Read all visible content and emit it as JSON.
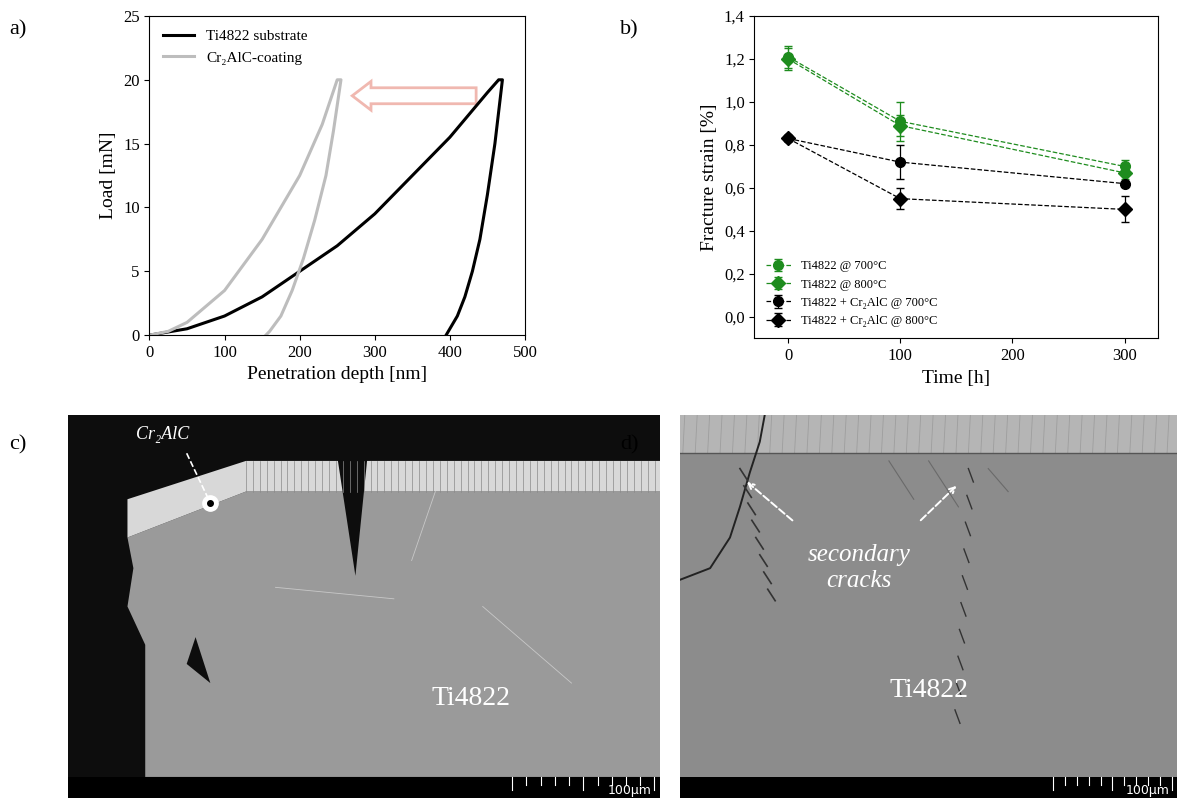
{
  "chart_data": [
    {
      "type": "line",
      "x_label": "Penetration depth [nm]",
      "y_label": "Load [mN]",
      "xlim": [
        0,
        500
      ],
      "xticks": [
        0,
        100,
        200,
        300,
        400,
        500
      ],
      "ylim": [
        0,
        25
      ],
      "yticks": [
        0,
        5,
        10,
        15,
        20,
        25
      ],
      "legend": "upper left",
      "series": [
        {
          "name": "Ti4822 substrate",
          "color": "#000000",
          "line_style": "solid",
          "x": [
            0,
            50,
            100,
            150,
            200,
            250,
            300,
            350,
            400,
            450,
            465,
            470,
            460,
            450,
            440,
            430,
            420,
            410,
            400,
            395
          ],
          "values": [
            0,
            0.5,
            1.5,
            3,
            5,
            7,
            9.5,
            12.5,
            15.5,
            19,
            20,
            20,
            15,
            11,
            7.5,
            5,
            3,
            1.5,
            0.5,
            0
          ]
        },
        {
          "name": "Cr₂AlC-coating",
          "color": "#bdbdbd",
          "line_style": "solid",
          "x": [
            0,
            25,
            50,
            100,
            150,
            200,
            230,
            250,
            255,
            245,
            235,
            220,
            205,
            190,
            175,
            160,
            155
          ],
          "values": [
            0,
            0.3,
            1,
            3.5,
            7.5,
            12.5,
            16.5,
            20,
            20,
            16,
            12.5,
            9,
            6,
            3.5,
            1.5,
            0.3,
            0
          ]
        }
      ]
    },
    {
      "type": "line",
      "x_label": "Time [h]",
      "y_label": "Fracture strain [%]",
      "xlim": [
        -30,
        330
      ],
      "xticks": [
        0,
        100,
        200,
        300
      ],
      "ylim": [
        -0.1,
        1.4
      ],
      "yticks": [
        {
          "value": 0.0,
          "label": "0,0"
        },
        {
          "value": 0.2,
          "label": "0,2"
        },
        {
          "value": 0.4,
          "label": "0,4"
        },
        {
          "value": 0.6,
          "label": "0,6"
        },
        {
          "value": 0.8,
          "label": "0,8"
        },
        {
          "value": 1.0,
          "label": "1,0"
        },
        {
          "value": 1.2,
          "label": "1,2"
        },
        {
          "value": 1.4,
          "label": "1,4"
        }
      ],
      "legend": "lower left",
      "x": [
        0,
        100,
        300
      ],
      "series": [
        {
          "name": "Ti4822 @ 700°C",
          "color": "#1e8c1e",
          "marker": "circle",
          "line_style": "dashed",
          "values": [
            1.21,
            0.91,
            0.7
          ],
          "errors": [
            0.05,
            0.09,
            0.03
          ]
        },
        {
          "name": "Ti4822 @ 800°C",
          "color": "#1e8c1e",
          "marker": "diamond",
          "line_style": "dashed",
          "values": [
            1.2,
            0.89,
            0.67
          ],
          "errors": [
            0.05,
            0.05,
            0.03
          ]
        },
        {
          "name": "Ti4822 + Cr₂AlC @ 700°C",
          "color": "#000000",
          "marker": "circle",
          "line_style": "dashed",
          "values": [
            0.83,
            0.72,
            0.62
          ],
          "errors": [
            0.01,
            0.08,
            0.01
          ]
        },
        {
          "name": "Ti4822 + Cr₂AlC @ 800°C",
          "color": "#000000",
          "marker": "diamond",
          "line_style": "dashed",
          "values": [
            0.83,
            0.55,
            0.5
          ],
          "errors": [
            0.01,
            0.05,
            0.06
          ]
        }
      ]
    }
  ],
  "panel_labels": [
    "a)",
    "b)",
    "c)",
    "d)"
  ],
  "images": [
    {
      "coating_label": "Cr₂AlC",
      "substrate_label": "Ti4822",
      "scale_bar": "100µm"
    },
    {
      "annotation": "secondary\ncracks",
      "substrate_label": "Ti4822",
      "scale_bar": "100µm"
    }
  ]
}
